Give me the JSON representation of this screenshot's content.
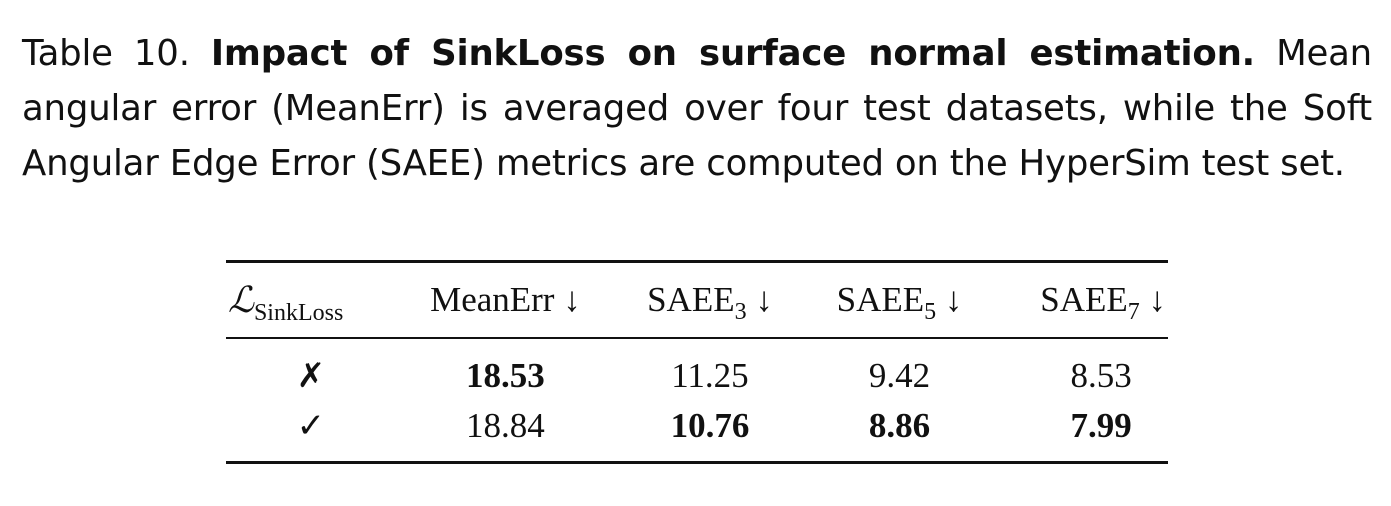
{
  "caption": {
    "label": "Table 10.",
    "title": "Impact of SinkLoss on surface normal estimation.",
    "body": "Mean angular error (MeanErr) is averaged over four test datasets, while the Soft Angular Edge Error (SAEE) metrics are computed on the HyperSim test set."
  },
  "table": {
    "headers": {
      "loss_symbol": "ℒ",
      "loss_subscript": "SinkLoss",
      "mean_err": "MeanErr ↓",
      "saee3_base": "SAEE",
      "saee3_sub": "3",
      "saee3_arrow": " ↓",
      "saee5_base": "SAEE",
      "saee5_sub": "5",
      "saee5_arrow": " ↓",
      "saee7_base": "SAEE",
      "saee7_sub": "7",
      "saee7_arrow": " ↓"
    },
    "rows": [
      {
        "loss": "✗",
        "mean_err": "18.53",
        "saee3": "11.25",
        "saee5": "9.42",
        "saee7": "8.53"
      },
      {
        "loss": "✓",
        "mean_err": "18.84",
        "saee3": "10.76",
        "saee5": "8.86",
        "saee7": "7.99"
      }
    ]
  }
}
